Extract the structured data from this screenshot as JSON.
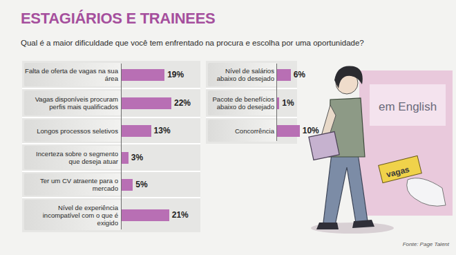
{
  "chart_data": {
    "type": "bar",
    "orientation": "horizontal",
    "title": "ESTAGIÁRIOS E TRAINEES",
    "subtitle": "Qual é a maior dificuldade que você tem enfrentado na procura e escolha por uma oportunidade?",
    "categories": [
      "Falta de oferta de vagas na sua área",
      "Vagas disponíveis procuram perfis mais qualificados",
      "Longos processos seletivos",
      "Incerteza sobre o segmento que deseja atuar",
      "Ter um CV atraente para o mercado",
      "Nível de experiência incompatível com o que é exigido",
      "Nível de salários abaixo do desejado",
      "Pacote de benefícios abaixo do desejado",
      "Concorrência"
    ],
    "values": [
      19,
      22,
      13,
      3,
      5,
      21,
      6,
      1,
      10
    ],
    "value_labels": [
      "19%",
      "22%",
      "13%",
      "3%",
      "5%",
      "21%",
      "6%",
      "1%",
      "10%"
    ],
    "data_labels": true,
    "tick_labels": "y",
    "color": "#b86fb4",
    "source": "Fonte: Page Talent",
    "annotations": [
      "em English",
      "vagas"
    ]
  }
}
